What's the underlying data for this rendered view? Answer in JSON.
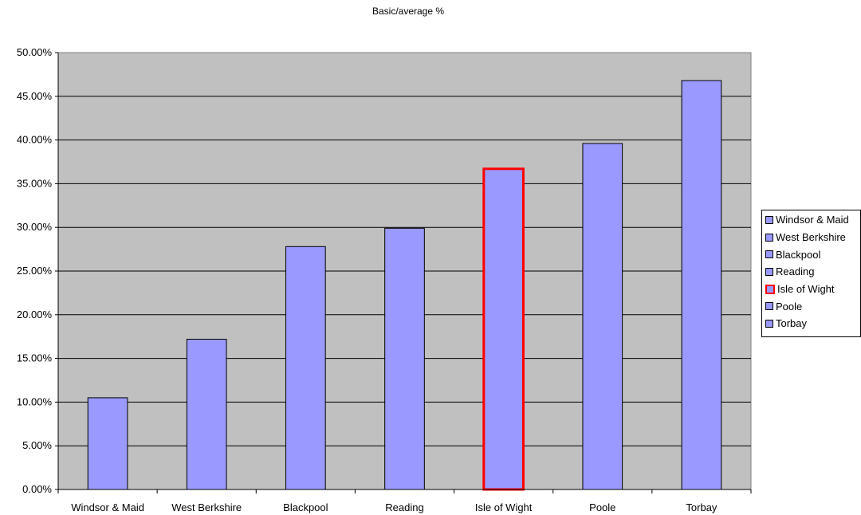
{
  "chart_data": {
    "type": "bar",
    "title": "Basic/average %",
    "xlabel": "",
    "ylabel": "",
    "categories": [
      "Windsor & Maid",
      "West Berkshire",
      "Blackpool",
      "Reading",
      "Isle of Wight",
      "Poole",
      "Torbay"
    ],
    "values": [
      10.5,
      17.2,
      27.8,
      29.9,
      36.7,
      39.6,
      46.8
    ],
    "highlighted": "Isle of Wight",
    "ylim": [
      0,
      50
    ],
    "yticks": [
      "0.00%",
      "5.00%",
      "10.00%",
      "15.00%",
      "20.00%",
      "25.00%",
      "30.00%",
      "35.00%",
      "40.00%",
      "45.00%",
      "50.00%"
    ],
    "grid": true,
    "legend_position": "right",
    "colors": {
      "bar_fill": "#9999ff",
      "highlight_border": "#ff0000",
      "plot_background": "#c0c0c0"
    }
  }
}
